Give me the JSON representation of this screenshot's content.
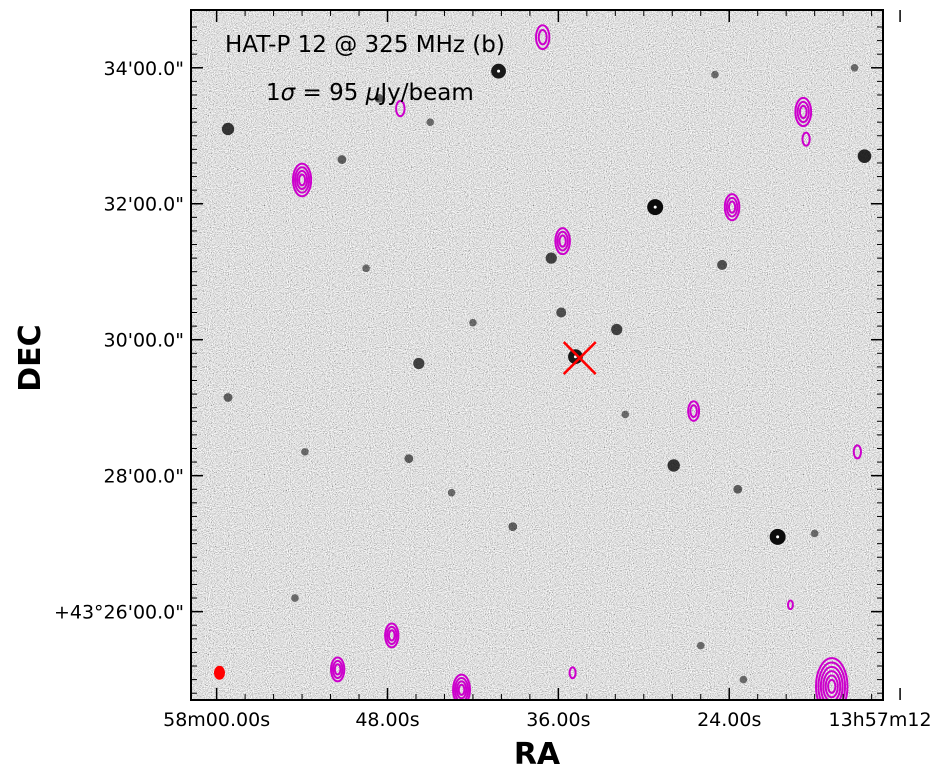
{
  "chart_data": {
    "type": "scatter",
    "title": "",
    "xlabel": "RA",
    "ylabel": "DEC",
    "annotation": {
      "title_line": "HAT-P 12 @ 325 MHz (b)",
      "noise_line_prefix": "1",
      "noise_line_sigma": "σ",
      "noise_line_eq": " = 95 ",
      "noise_line_mu": "μ",
      "noise_line_unit": "Jy/beam"
    },
    "x_ticks": [
      {
        "label": "58m00.00s",
        "value": 0
      },
      {
        "label": "48.00s",
        "value": 12
      },
      {
        "label": "36.00s",
        "value": 24
      },
      {
        "label": "24.00s",
        "value": 36
      },
      {
        "label": "13h57m12.00s",
        "value": 48
      }
    ],
    "y_ticks": [
      {
        "label": "+43°26'00.0\"",
        "value": 26
      },
      {
        "label": "28'00.0\"",
        "value": 28
      },
      {
        "label": "30'00.0\"",
        "value": 30
      },
      {
        "label": "32'00.0\"",
        "value": 32
      },
      {
        "label": "34'00.0\"",
        "value": 34
      }
    ],
    "xlim": [
      -1.8,
      46.8
    ],
    "ylim": [
      24.7,
      34.85
    ],
    "target_marker": {
      "name": "HAT-P 12",
      "x": 25.5,
      "y": 29.73,
      "symbol": "x",
      "color": "#ff0000"
    },
    "beam": {
      "x": 0.2,
      "y": 25.1,
      "color": "#ff0000"
    },
    "contour_color": "#cc00cc",
    "contour_sources": [
      {
        "x": 22.9,
        "y": 34.45,
        "levels": 2,
        "r": 0.55
      },
      {
        "x": 12.9,
        "y": 33.4,
        "levels": 1,
        "r": 0.35
      },
      {
        "x": 6.0,
        "y": 32.35,
        "levels": 4,
        "r": 0.75
      },
      {
        "x": 24.3,
        "y": 31.45,
        "levels": 3,
        "r": 0.6
      },
      {
        "x": 36.2,
        "y": 31.95,
        "levels": 3,
        "r": 0.6
      },
      {
        "x": 41.2,
        "y": 33.35,
        "levels": 3,
        "r": 0.65
      },
      {
        "x": 41.4,
        "y": 32.95,
        "levels": 1,
        "r": 0.3
      },
      {
        "x": 33.5,
        "y": 28.95,
        "levels": 2,
        "r": 0.45
      },
      {
        "x": 45.0,
        "y": 28.35,
        "levels": 1,
        "r": 0.3
      },
      {
        "x": 12.3,
        "y": 25.65,
        "levels": 3,
        "r": 0.55
      },
      {
        "x": 8.5,
        "y": 25.15,
        "levels": 3,
        "r": 0.55
      },
      {
        "x": 17.2,
        "y": 24.85,
        "levels": 4,
        "r": 0.7
      },
      {
        "x": 25.0,
        "y": 25.1,
        "levels": 1,
        "r": 0.25
      },
      {
        "x": 40.3,
        "y": 26.1,
        "levels": 1,
        "r": 0.2
      },
      {
        "x": 43.2,
        "y": 24.9,
        "levels": 6,
        "r": 1.3
      }
    ],
    "optical_sources": [
      {
        "x": 19.8,
        "y": 33.95,
        "b": 0.9
      },
      {
        "x": 0.8,
        "y": 33.1,
        "b": 0.7
      },
      {
        "x": 8.8,
        "y": 32.65,
        "b": 0.4
      },
      {
        "x": 45.5,
        "y": 32.7,
        "b": 0.8
      },
      {
        "x": 30.8,
        "y": 31.95,
        "b": 1.0
      },
      {
        "x": 23.5,
        "y": 31.2,
        "b": 0.6
      },
      {
        "x": 24.2,
        "y": 30.4,
        "b": 0.5
      },
      {
        "x": 28.1,
        "y": 30.15,
        "b": 0.6
      },
      {
        "x": 35.5,
        "y": 31.1,
        "b": 0.5
      },
      {
        "x": 14.2,
        "y": 29.65,
        "b": 0.6
      },
      {
        "x": 25.2,
        "y": 29.75,
        "b": 0.9
      },
      {
        "x": 32.1,
        "y": 28.15,
        "b": 0.7
      },
      {
        "x": 39.4,
        "y": 27.1,
        "b": 1.0
      },
      {
        "x": 0.8,
        "y": 29.15,
        "b": 0.4
      },
      {
        "x": 6.2,
        "y": 28.35,
        "b": 0.3
      },
      {
        "x": 13.5,
        "y": 28.25,
        "b": 0.4
      },
      {
        "x": 20.8,
        "y": 27.25,
        "b": 0.4
      },
      {
        "x": 36.6,
        "y": 27.8,
        "b": 0.4
      },
      {
        "x": 42.0,
        "y": 27.15,
        "b": 0.3
      },
      {
        "x": 11.4,
        "y": 33.55,
        "b": 0.4
      },
      {
        "x": 15.0,
        "y": 33.2,
        "b": 0.3
      },
      {
        "x": 35.0,
        "y": 33.9,
        "b": 0.3
      },
      {
        "x": 44.8,
        "y": 34.0,
        "b": 0.3
      },
      {
        "x": 10.5,
        "y": 31.05,
        "b": 0.3
      },
      {
        "x": 18.0,
        "y": 30.25,
        "b": 0.3
      },
      {
        "x": 5.5,
        "y": 26.2,
        "b": 0.3
      },
      {
        "x": 34.0,
        "y": 25.5,
        "b": 0.3
      },
      {
        "x": 37.0,
        "y": 25.0,
        "b": 0.3
      },
      {
        "x": 28.7,
        "y": 28.9,
        "b": 0.3
      },
      {
        "x": 16.5,
        "y": 27.75,
        "b": 0.3
      }
    ],
    "grid": false
  }
}
